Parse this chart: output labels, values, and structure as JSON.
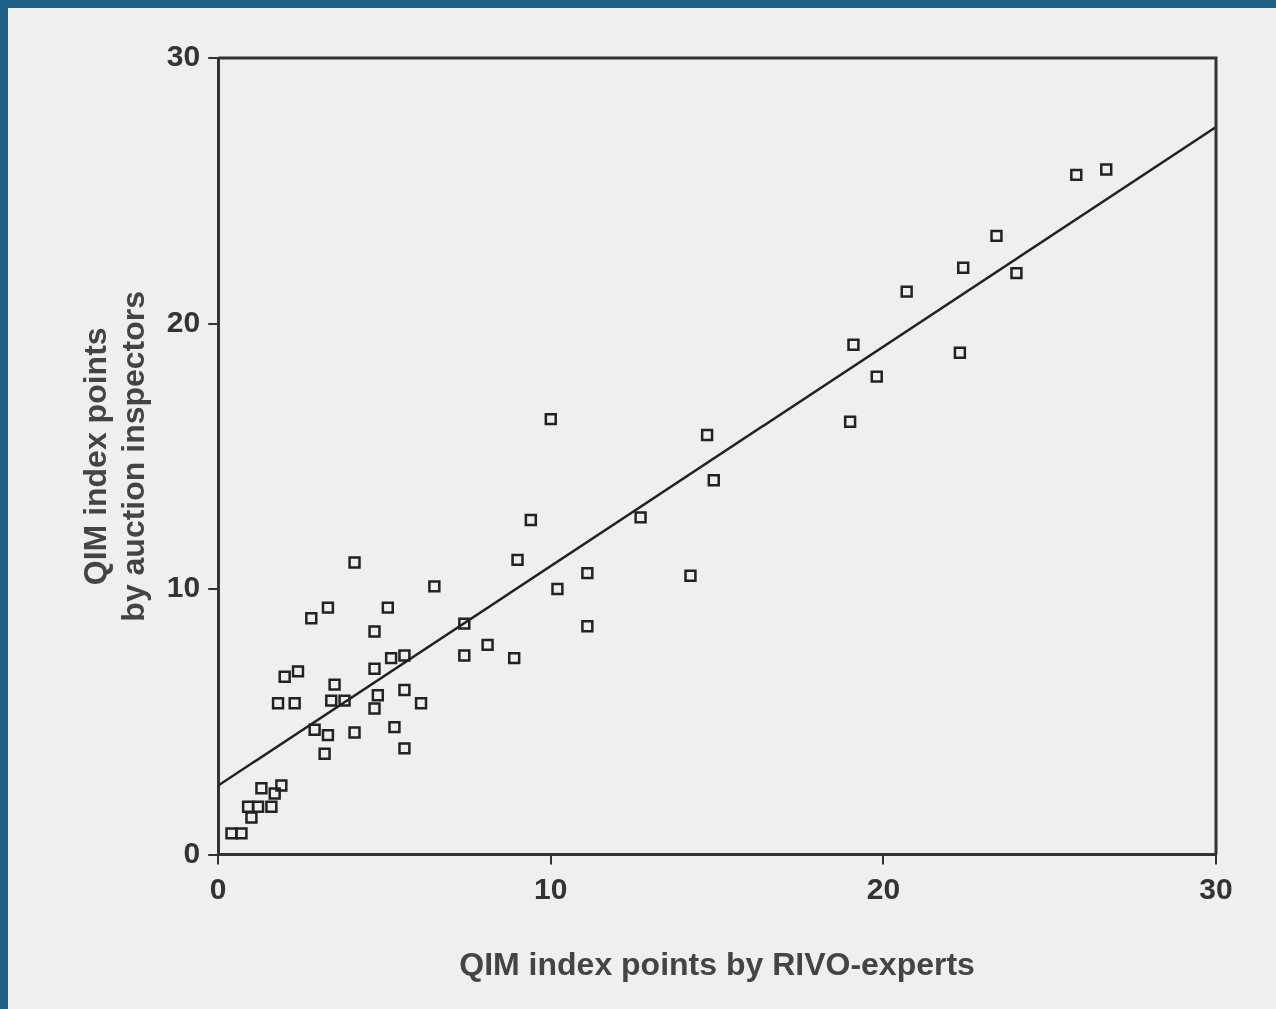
{
  "chart_data": {
    "type": "scatter",
    "xlabel": "QIM index points by RIVO-experts",
    "ylabel": "QIM index points by auction inspectors",
    "xlim": [
      0,
      30
    ],
    "ylim": [
      0,
      30
    ],
    "xticks": [
      0,
      10,
      20,
      30
    ],
    "yticks": [
      0,
      10,
      20,
      30
    ],
    "grid": false,
    "legend": false,
    "marker": "square",
    "series": [
      {
        "type": "scatter",
        "color": "#222222",
        "x": [
          0.4,
          0.7,
          0.9,
          1.0,
          1.2,
          1.6,
          1.7,
          1.3,
          1.9,
          1.8,
          2.3,
          2.0,
          2.4,
          2.8,
          3.3,
          4.1,
          2.9,
          3.3,
          3.2,
          4.1,
          3.5,
          3.4,
          3.8,
          4.7,
          5.1,
          4.7,
          4.8,
          4.7,
          5.2,
          5.6,
          5.6,
          6.1,
          5.3,
          5.6,
          6.5,
          7.4,
          7.4,
          8.1,
          8.9,
          9.0,
          10.2,
          11.1,
          11.1,
          10.0,
          14.7,
          14.9,
          12.7,
          9.4,
          14.2,
          25.8,
          26.7,
          23.4,
          22.4,
          24.0,
          20.7,
          19.1,
          22.3,
          19.8,
          19.0
        ],
        "values": [
          0.8,
          0.8,
          1.8,
          1.4,
          1.8,
          1.8,
          2.3,
          2.5,
          2.6,
          5.7,
          5.7,
          6.7,
          6.9,
          8.9,
          9.3,
          11.0,
          4.7,
          4.5,
          3.8,
          4.6,
          6.4,
          5.8,
          5.8,
          8.4,
          9.3,
          7.0,
          6.0,
          5.5,
          7.4,
          7.5,
          6.2,
          5.7,
          4.8,
          4.0,
          10.1,
          8.7,
          7.5,
          7.9,
          7.4,
          11.1,
          10.0,
          10.6,
          8.6,
          16.4,
          15.8,
          14.1,
          12.7,
          12.6,
          10.5,
          25.6,
          25.8,
          23.3,
          22.1,
          21.9,
          21.2,
          19.2,
          18.9,
          18.0,
          16.3
        ]
      },
      {
        "type": "line",
        "color": "#222222",
        "x": [
          0,
          30
        ],
        "values": [
          2.6,
          27.4
        ],
        "marker": "none",
        "line_style": "solid"
      }
    ]
  }
}
